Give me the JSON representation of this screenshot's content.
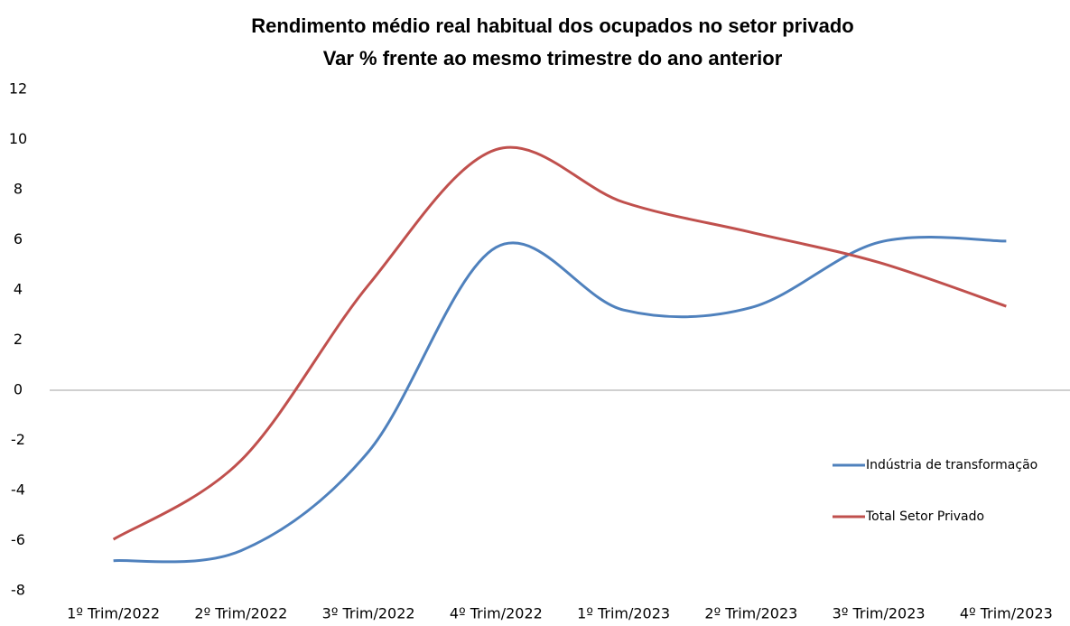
{
  "chart_data": {
    "type": "line",
    "title": "Rendimento médio real habitual dos ocupados no setor privado",
    "subtitle": "Var %  frente ao mesmo trimestre do ano anterior",
    "categories": [
      "1º Trim/2022",
      "2º Trim/2022",
      "3º Trim/2022",
      "4º Trim/2022",
      "1º Trim/2023",
      "2º Trim/2023",
      "3º Trim/2023",
      "4º Trim/2023"
    ],
    "series": [
      {
        "name": "Indústria de transformação",
        "color": "#4f81bd",
        "values": [
          -6.8,
          -6.4,
          -2.45,
          5.7,
          3.2,
          3.3,
          5.9,
          5.95
        ]
      },
      {
        "name": "Total Setor Privado",
        "color": "#c0504d",
        "values": [
          -5.95,
          -2.8,
          4.2,
          9.6,
          7.5,
          6.3,
          5.1,
          3.35
        ]
      }
    ],
    "ylim": [
      -8,
      12
    ],
    "yticks": [
      -8,
      -6,
      -4,
      -2,
      0,
      2,
      4,
      6,
      8,
      10,
      12
    ],
    "grid": false,
    "smooth": true,
    "legend": "right"
  }
}
